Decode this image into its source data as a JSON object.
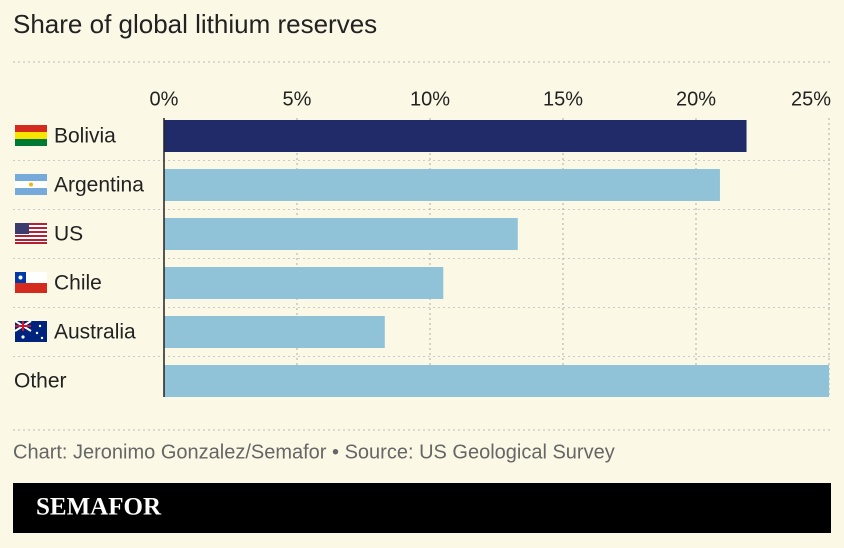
{
  "chart_data": {
    "type": "hbar",
    "title": "Share of global lithium reserves",
    "categories": [
      "Bolivia",
      "Argentina",
      "US",
      "Chile",
      "Australia",
      "Other"
    ],
    "values": [
      21.9,
      20.9,
      13.3,
      10.5,
      8.3,
      25
    ],
    "colors": [
      "#222b6a",
      "#90c2d8",
      "#90c2d8",
      "#90c2d8",
      "#90c2d8",
      "#90c2d8"
    ],
    "xlim": [
      0,
      25
    ],
    "xticks": [
      {
        "value": 0,
        "label": "0%"
      },
      {
        "value": 5,
        "label": "5%"
      },
      {
        "value": 10,
        "label": "10%"
      },
      {
        "value": 15,
        "label": "15%"
      },
      {
        "value": 20,
        "label": "20%"
      },
      {
        "value": 25,
        "label": "25%"
      }
    ],
    "grid": true,
    "source": "Chart: Jeronimo Gonzalez/Semafor • Source: US Geological Survey",
    "brand": "SEMAFOR"
  }
}
